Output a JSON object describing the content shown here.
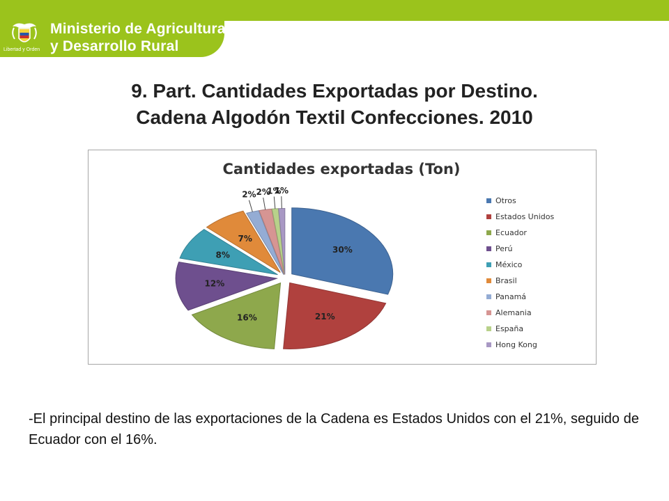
{
  "header": {
    "band_color": "#9bc31c",
    "ministry_line1": "Ministerio de Agricultura",
    "ministry_line2": "y Desarrollo Rural",
    "crest_caption": "Libertad y Orden",
    "crest_icon": "coat-of-arms-icon"
  },
  "slide": {
    "title_line1": "9.  Part. Cantidades Exportadas por Destino.",
    "title_line2": "Cadena Algodón Textil Confecciones.  2010"
  },
  "body": {
    "paragraph": "-El principal destino de las exportaciones de la Cadena es Estados Unidos con el 21%, seguido de Ecuador con el 16%."
  },
  "chart_data": {
    "type": "pie",
    "title": "Cantidades exportadas (Ton)",
    "legend_position": "right",
    "exploded": true,
    "categories": [
      "Otros",
      "Estados Unidos",
      "Ecuador",
      "Perú",
      "México",
      "Brasil",
      "Panamá",
      "Alemania",
      "España",
      "Hong Kong"
    ],
    "values": [
      30,
      21,
      16,
      12,
      8,
      7,
      2,
      2,
      1,
      1
    ],
    "labels": [
      "30%",
      "21%",
      "16%",
      "12%",
      "8%",
      "7%",
      "2%",
      "2%",
      "1%",
      "1%"
    ],
    "colors": [
      "#4a78b0",
      "#b0413e",
      "#8ea84c",
      "#6e4f8e",
      "#3e9fb4",
      "#e08a3a",
      "#94acd4",
      "#d69593",
      "#b8d18a",
      "#a898c4"
    ]
  }
}
